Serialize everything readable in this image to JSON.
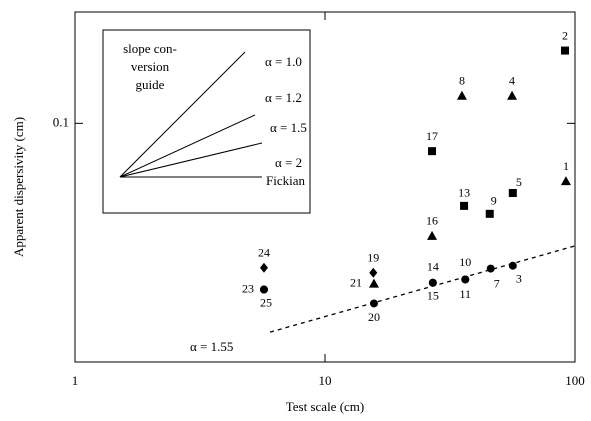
{
  "chart_data": {
    "type": "scatter",
    "x_label": "Test scale (cm)",
    "y_label": "Apparent dispersivity (cm)",
    "log_x": true,
    "log_y": true,
    "xlim": [
      1,
      100
    ],
    "ylim": [
      0.011,
      0.28
    ],
    "xticks": [
      1,
      10,
      100
    ],
    "yticks": [
      0.1
    ],
    "color": "#000000",
    "series": [
      {
        "marker": "square",
        "points": [
          {
            "label": "2",
            "x": 91.2,
            "y": 0.196
          },
          {
            "label": "17",
            "x": 26.8,
            "y": 0.0773
          },
          {
            "label": "5",
            "x": 56.4,
            "y": 0.0525
          },
          {
            "label": "13",
            "x": 36,
            "y": 0.0466
          },
          {
            "label": "9",
            "x": 45.6,
            "y": 0.0433
          }
        ]
      },
      {
        "marker": "triangle",
        "points": [
          {
            "label": "8",
            "x": 35.3,
            "y": 0.129
          },
          {
            "label": "4",
            "x": 56,
            "y": 0.129
          },
          {
            "label": "1",
            "x": 92,
            "y": 0.0586
          },
          {
            "label": "16",
            "x": 26.8,
            "y": 0.0353
          },
          {
            "label": "21",
            "x": 15.7,
            "y": 0.0227
          }
        ]
      },
      {
        "marker": "diamond",
        "points": [
          {
            "label": "24",
            "x": 5.7,
            "y": 0.0263
          },
          {
            "label": "19",
            "x": 15.6,
            "y": 0.0251
          }
        ]
      },
      {
        "marker": "circle",
        "points": [
          {
            "label": "23",
            "x": 5.7,
            "y": 0.0215
          },
          {
            "label": "25",
            "x": 5.7,
            "y": 0.0215
          },
          {
            "label": "20",
            "x": 15.7,
            "y": 0.0189
          },
          {
            "label": "14",
            "x": 27,
            "y": 0.0229
          },
          {
            "label": "15",
            "x": 27,
            "y": 0.0229
          },
          {
            "label": "10",
            "x": 36.4,
            "y": 0.0236
          },
          {
            "label": "11",
            "x": 36.4,
            "y": 0.0236
          },
          {
            "label": "7",
            "x": 46,
            "y": 0.0261
          },
          {
            "label": "3",
            "x": 56.4,
            "y": 0.0268
          }
        ]
      }
    ],
    "fit_line": {
      "label": "α = 1.55",
      "x": [
        6.03,
        100
      ],
      "y": [
        0.0145,
        0.0322
      ]
    },
    "guide": {
      "title": [
        "slope con-",
        "version",
        "guide"
      ],
      "lines": [
        "α = 1.0",
        "α = 1.2",
        "α = 1.5",
        "α = 2"
      ],
      "note": "Fickian"
    }
  }
}
